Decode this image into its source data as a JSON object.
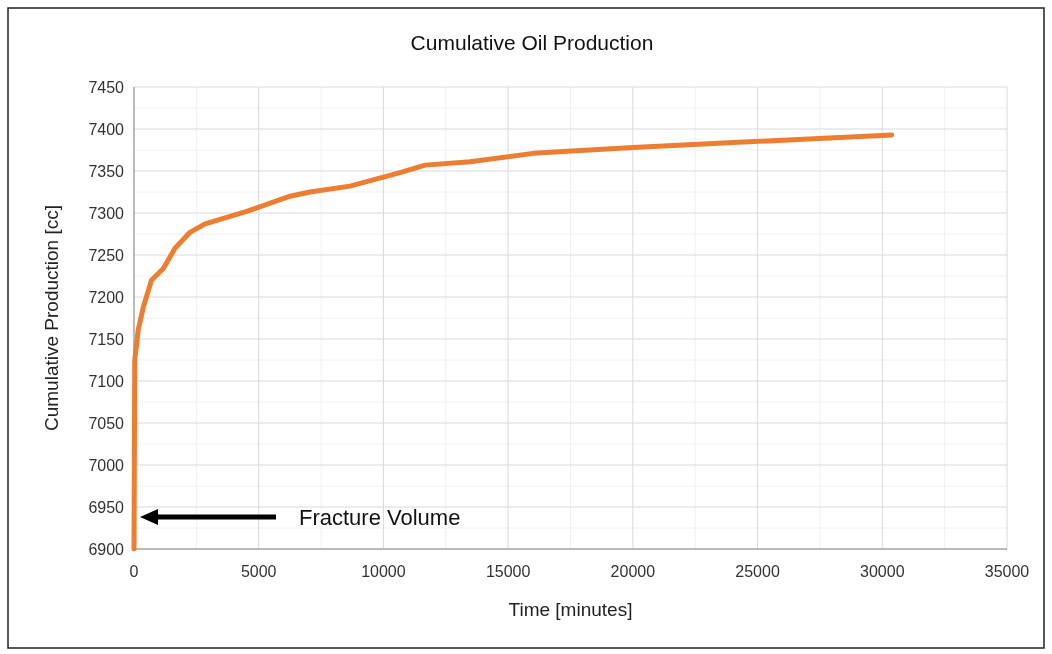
{
  "chart_data": {
    "type": "line",
    "title": "Cumulative Oil Production",
    "xlabel": "Time [minutes]",
    "ylabel": "Cumulative Production [cc]",
    "x": [
      0,
      30,
      170,
      375,
      700,
      1175,
      1645,
      2245,
      2850,
      4520,
      6255,
      7055,
      8660,
      10665,
      11670,
      13470,
      16000,
      20000,
      30380
    ],
    "series": [
      {
        "color": "#ed7d31",
        "values": [
          6900,
          7125,
          7161,
          7188,
          7220,
          7234,
          7258,
          7277,
          7287,
          7302,
          7320,
          7325,
          7332,
          7348,
          7357,
          7361,
          7371,
          7378,
          7393
        ]
      }
    ],
    "xlim": [
      0,
      35000
    ],
    "xticks": [
      0,
      5000,
      10000,
      15000,
      20000,
      25000,
      30000,
      35000
    ],
    "ylim": [
      6900,
      7450
    ],
    "yticks": [
      6900,
      6950,
      7000,
      7050,
      7100,
      7150,
      7200,
      7250,
      7300,
      7350,
      7400,
      7450
    ],
    "grid": true,
    "marker": "none",
    "line_style": "solid",
    "annotations": [
      "Fracture Volume"
    ]
  }
}
